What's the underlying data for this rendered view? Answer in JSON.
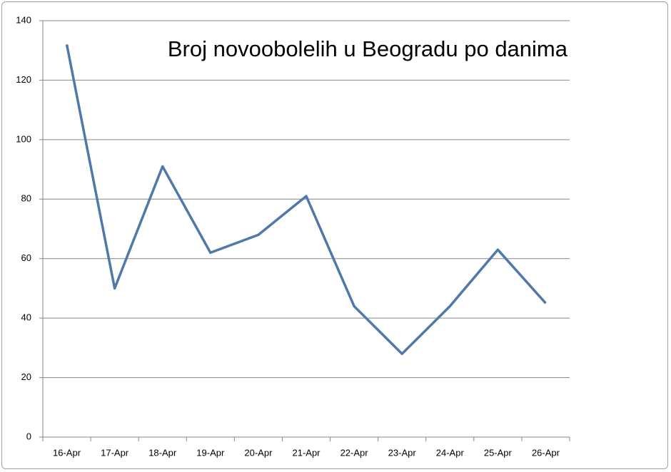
{
  "chart_data": {
    "type": "line",
    "title": "Broj novoobolelih u Beogradu po danima",
    "categories": [
      "16-Apr",
      "17-Apr",
      "18-Apr",
      "19-Apr",
      "20-Apr",
      "21-Apr",
      "22-Apr",
      "23-Apr",
      "24-Apr",
      "25-Apr",
      "26-Apr"
    ],
    "series": [
      {
        "name": "Broj novoobolelih",
        "color": "#4f79a8",
        "values": [
          132,
          50,
          91,
          62,
          68,
          81,
          44,
          28,
          44,
          63,
          45
        ]
      }
    ],
    "ylim": [
      0,
      140
    ],
    "yticks": [
      0,
      20,
      40,
      60,
      80,
      100,
      120,
      140
    ],
    "grid": true
  }
}
